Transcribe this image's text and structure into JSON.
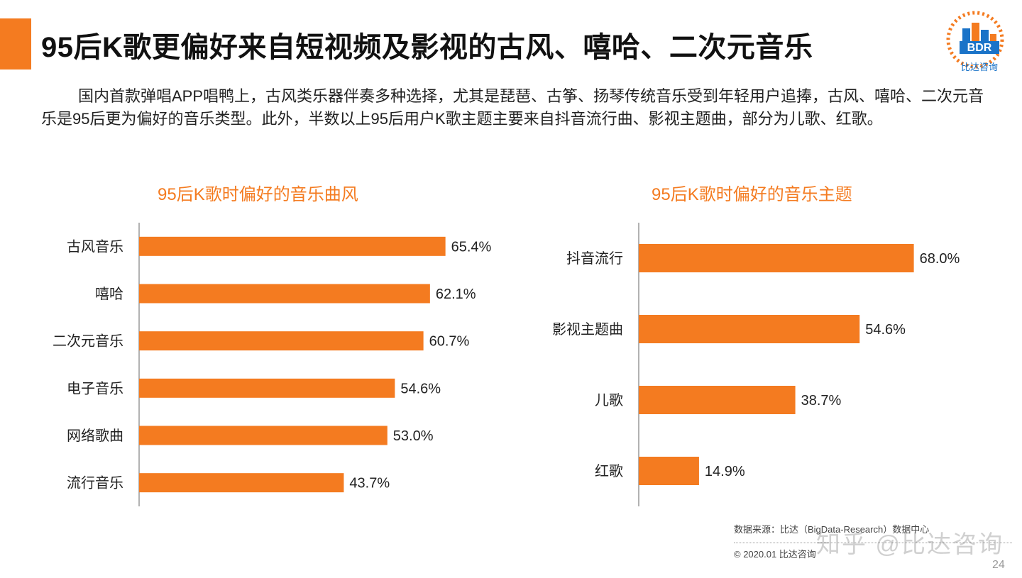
{
  "title": "95后K歌更偏好来自短视频及影视的古风、嘻哈、二次元音乐",
  "logo": {
    "text": "BDR",
    "caption": "比达咨询"
  },
  "intro": "国内首款弹唱APP唱鸭上，古风类乐器伴奏多种选择，尤其是琵琶、古筝、扬琴传统音乐受到年轻用户追捧，古风、嘻哈、二次元音乐是95后更为偏好的音乐类型。此外，半数以上95后用户K歌主题主要来自抖音流行曲、影视主题曲，部分为儿歌、红歌。",
  "colors": {
    "accent": "#f47b20",
    "bar": "#f47b20",
    "logo_blue": "#1a73c8"
  },
  "chart_data": [
    {
      "type": "bar",
      "orientation": "horizontal",
      "title": "95后K歌时偏好的音乐曲风",
      "categories": [
        "古风音乐",
        "嘻哈",
        "二次元音乐",
        "电子音乐",
        "网络歌曲",
        "流行音乐"
      ],
      "values": [
        65.4,
        62.1,
        60.7,
        54.6,
        53.0,
        43.7
      ],
      "labels": [
        "65.4%",
        "62.1%",
        "60.7%",
        "54.6%",
        "53.0%",
        "43.7%"
      ],
      "xlim": [
        0,
        100
      ],
      "grid": false,
      "legend": "none"
    },
    {
      "type": "bar",
      "orientation": "horizontal",
      "title": "95后K歌时偏好的音乐主题",
      "categories": [
        "抖音流行",
        "影视主题曲",
        "儿歌",
        "红歌"
      ],
      "values": [
        68.0,
        54.6,
        38.7,
        14.9
      ],
      "labels": [
        "68.0%",
        "54.6%",
        "38.7%",
        "14.9%"
      ],
      "xlim": [
        0,
        100
      ],
      "grid": false,
      "legend": "none"
    }
  ],
  "footer": {
    "source": "数据来源：比达（BigData-Research）数据中心",
    "copyright": "© 2020.01 比达咨询",
    "watermark": "知乎 @比达咨询",
    "page": "24"
  }
}
